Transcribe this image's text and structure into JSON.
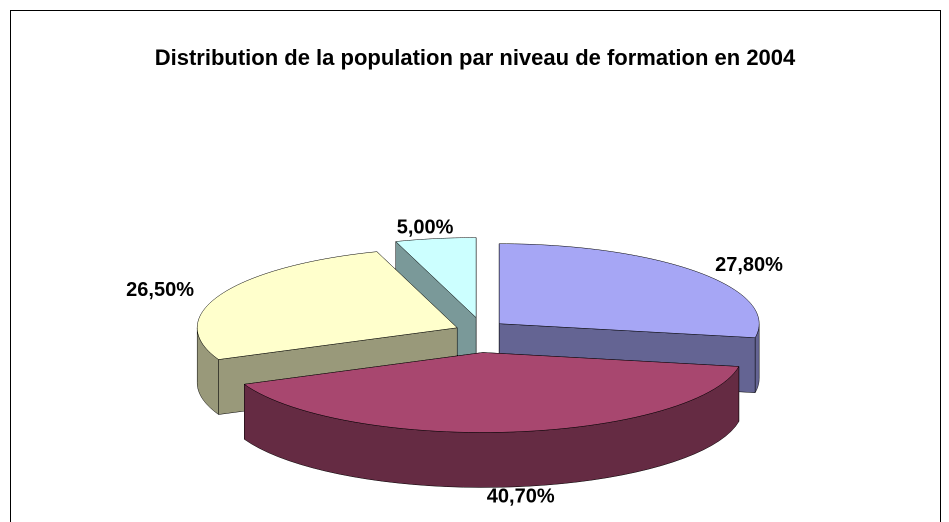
{
  "chart_data": {
    "type": "pie",
    "title": "Distribution de la population par niveau de formation en 2004",
    "values": [
      27.8,
      40.7,
      26.5,
      5.0
    ],
    "value_labels": [
      "27,80%",
      "40,70%",
      "26,50%",
      "5,00%"
    ],
    "colors": [
      "#a6a6f5",
      "#a8476f",
      "#ffffcc",
      "#ccffff"
    ]
  }
}
